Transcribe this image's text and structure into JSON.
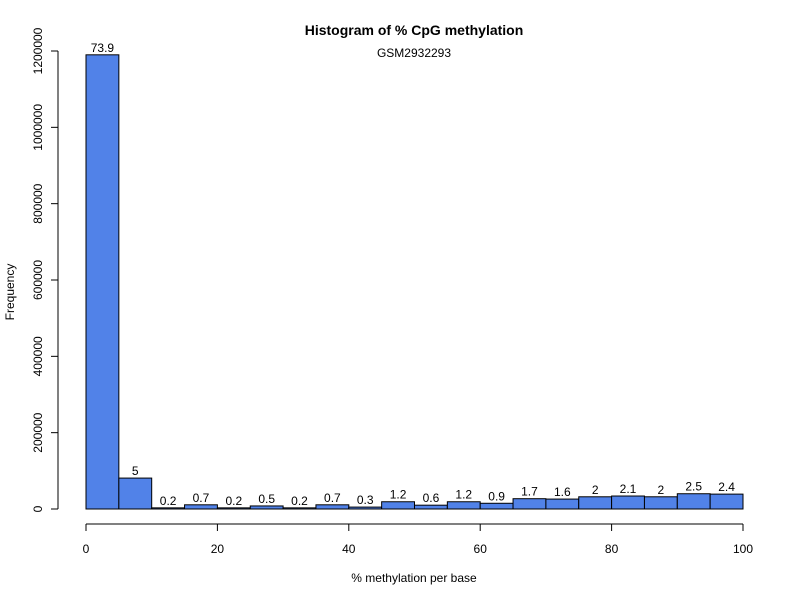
{
  "chart_data": {
    "type": "bar",
    "title": "Histogram of % CpG methylation",
    "subtitle": "GSM2932293",
    "xlabel": "% methylation per base",
    "ylabel": "Frequency",
    "bar_color": "#5182E8",
    "bar_edge_color": "#000000",
    "xlim": [
      0,
      100
    ],
    "ylim": [
      0,
      1200000
    ],
    "x_ticks": [
      0,
      20,
      40,
      60,
      80,
      100
    ],
    "y_ticks": [
      0,
      200000,
      400000,
      600000,
      800000,
      1000000,
      1200000
    ],
    "x_tick_labels": [
      "0",
      "20",
      "40",
      "60",
      "80",
      "100"
    ],
    "y_tick_labels": [
      "0",
      "200000",
      "400000",
      "600000",
      "800000",
      "1000000",
      "1200000"
    ],
    "bins": [
      {
        "start": 0,
        "end": 5,
        "frequency": 1190000,
        "label": "73.9"
      },
      {
        "start": 5,
        "end": 10,
        "frequency": 81000,
        "label": "5"
      },
      {
        "start": 10,
        "end": 15,
        "frequency": 3000,
        "label": "0.2"
      },
      {
        "start": 15,
        "end": 20,
        "frequency": 11000,
        "label": "0.7"
      },
      {
        "start": 20,
        "end": 25,
        "frequency": 3000,
        "label": "0.2"
      },
      {
        "start": 25,
        "end": 30,
        "frequency": 8000,
        "label": "0.5"
      },
      {
        "start": 30,
        "end": 35,
        "frequency": 3000,
        "label": "0.2"
      },
      {
        "start": 35,
        "end": 40,
        "frequency": 11000,
        "label": "0.7"
      },
      {
        "start": 40,
        "end": 45,
        "frequency": 5000,
        "label": "0.3"
      },
      {
        "start": 45,
        "end": 50,
        "frequency": 19000,
        "label": "1.2"
      },
      {
        "start": 50,
        "end": 55,
        "frequency": 10000,
        "label": "0.6"
      },
      {
        "start": 55,
        "end": 60,
        "frequency": 19000,
        "label": "1.2"
      },
      {
        "start": 60,
        "end": 65,
        "frequency": 15000,
        "label": "0.9"
      },
      {
        "start": 65,
        "end": 70,
        "frequency": 27000,
        "label": "1.7"
      },
      {
        "start": 70,
        "end": 75,
        "frequency": 26000,
        "label": "1.6"
      },
      {
        "start": 75,
        "end": 80,
        "frequency": 32000,
        "label": "2"
      },
      {
        "start": 80,
        "end": 85,
        "frequency": 34000,
        "label": "2.1"
      },
      {
        "start": 85,
        "end": 90,
        "frequency": 32000,
        "label": "2"
      },
      {
        "start": 90,
        "end": 95,
        "frequency": 40000,
        "label": "2.5"
      },
      {
        "start": 95,
        "end": 100,
        "frequency": 39000,
        "label": "2.4"
      }
    ],
    "grid": false,
    "legend": "none"
  }
}
